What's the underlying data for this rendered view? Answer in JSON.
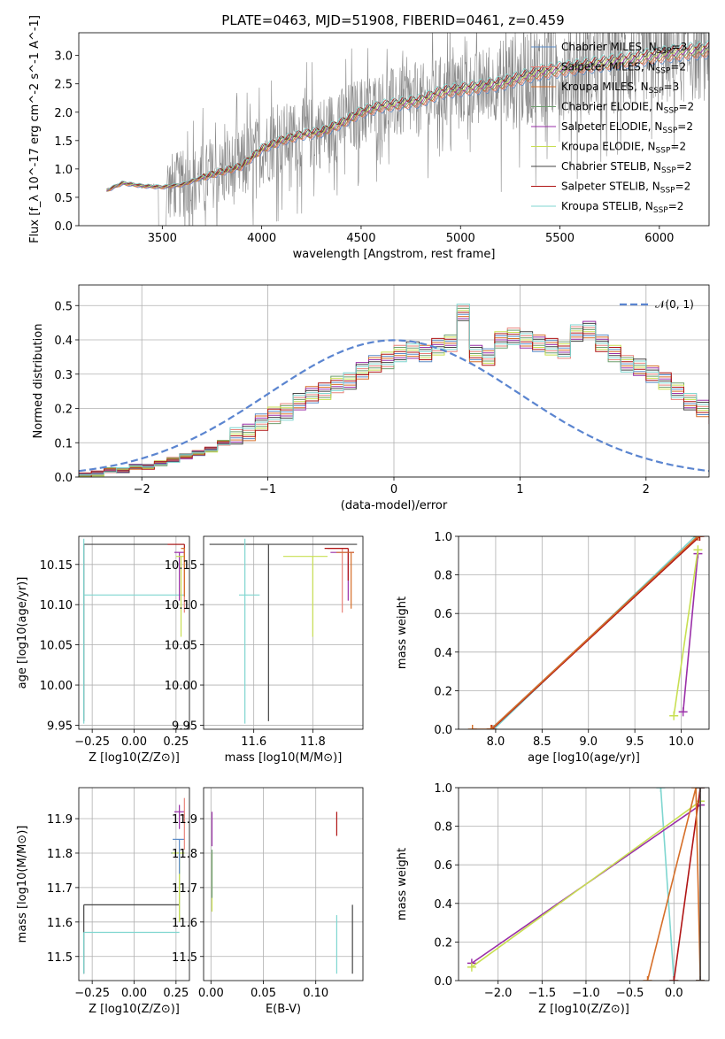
{
  "figure_title": "PLATE=0463, MJD=51908, FIBERID=0461, z=0.459",
  "models": [
    {
      "name": "Chabrier MILES",
      "nssp": "3",
      "color": "#5b8cc8"
    },
    {
      "name": "Salpeter MILES",
      "nssp": "2",
      "color": "#e8837a"
    },
    {
      "name": "Kroupa MILES",
      "nssp": "3",
      "color": "#d66f29"
    },
    {
      "name": "Chabrier ELODIE",
      "nssp": "2",
      "color": "#6e9f6e"
    },
    {
      "name": "Salpeter ELODIE",
      "nssp": "2",
      "color": "#9a2fa8"
    },
    {
      "name": "Kroupa ELODIE",
      "nssp": "2",
      "color": "#c8df52"
    },
    {
      "name": "Chabrier STELIB",
      "nssp": "2",
      "color": "#444444"
    },
    {
      "name": "Salpeter STELIB",
      "nssp": "2",
      "color": "#b01515"
    },
    {
      "name": "Kroupa STELIB",
      "nssp": "2",
      "color": "#7fd6d0"
    }
  ],
  "chart_data": [
    {
      "id": "spectrum",
      "type": "line",
      "title": "PLATE=0463, MJD=51908, FIBERID=0461, z=0.459",
      "xlabel": "wavelength [Angstrom, rest frame]",
      "ylabel": "Flux [f_λ 10^-17 erg cm^-2 s^-1 A^-1]",
      "xlim": [
        3080,
        6250
      ],
      "ylim": [
        0,
        3.4
      ],
      "xticks": [
        3500,
        4000,
        4500,
        5000,
        5500,
        6000
      ],
      "yticks": [
        0.0,
        0.5,
        1.0,
        1.5,
        2.0,
        2.5,
        3.0
      ],
      "data_color": "#888888",
      "model_continuum": [
        [
          3220,
          0.62
        ],
        [
          3300,
          0.75
        ],
        [
          3400,
          0.7
        ],
        [
          3500,
          0.68
        ],
        [
          3600,
          0.72
        ],
        [
          3700,
          0.85
        ],
        [
          3800,
          0.95
        ],
        [
          3900,
          1.05
        ],
        [
          4000,
          1.35
        ],
        [
          4100,
          1.5
        ],
        [
          4200,
          1.6
        ],
        [
          4300,
          1.65
        ],
        [
          4400,
          1.8
        ],
        [
          4500,
          2.0
        ],
        [
          4600,
          2.1
        ],
        [
          4700,
          2.15
        ],
        [
          4800,
          2.2
        ],
        [
          4900,
          2.35
        ],
        [
          5000,
          2.4
        ],
        [
          5100,
          2.45
        ],
        [
          5200,
          2.5
        ],
        [
          5300,
          2.6
        ],
        [
          5400,
          2.7
        ],
        [
          5500,
          2.75
        ],
        [
          5600,
          2.8
        ],
        [
          5700,
          2.85
        ],
        [
          5800,
          2.9
        ],
        [
          5900,
          2.95
        ],
        [
          6000,
          3.0
        ],
        [
          6100,
          3.05
        ],
        [
          6250,
          3.1
        ]
      ],
      "grid": false,
      "legend": "right"
    },
    {
      "id": "residuals",
      "type": "step",
      "xlabel": "(data-model)/error",
      "ylabel": "Normed distribution",
      "xlim": [
        -2.5,
        2.5
      ],
      "ylim": [
        0,
        0.56
      ],
      "xticks": [
        -2,
        -1,
        0,
        1,
        2
      ],
      "yticks": [
        0.0,
        0.1,
        0.2,
        0.3,
        0.4,
        0.5
      ],
      "bin_edges_start": -2.5,
      "bin_width": 0.1,
      "histogram": [
        0.005,
        0.01,
        0.02,
        0.02,
        0.03,
        0.03,
        0.04,
        0.05,
        0.06,
        0.07,
        0.08,
        0.1,
        0.12,
        0.13,
        0.16,
        0.18,
        0.19,
        0.22,
        0.24,
        0.25,
        0.27,
        0.28,
        0.31,
        0.33,
        0.34,
        0.36,
        0.37,
        0.36,
        0.38,
        0.39,
        0.48,
        0.36,
        0.35,
        0.4,
        0.41,
        0.4,
        0.39,
        0.38,
        0.37,
        0.42,
        0.43,
        0.39,
        0.36,
        0.33,
        0.32,
        0.3,
        0.28,
        0.25,
        0.22,
        0.2,
        0.18,
        0.15,
        0.13,
        0.12,
        0.1,
        0.08,
        0.06,
        0.05,
        0.05,
        0.04,
        0.05,
        0.04,
        0.04
      ],
      "normal_label": "𝒩(0, 1)",
      "normal_color": "#5b85d0",
      "grid": true,
      "legend": "top-right"
    },
    {
      "id": "age_vs_Z",
      "type": "errorbar",
      "xlabel": "Z [log10(Z/Z⊙)]",
      "ylabel": "age [log10(age/yr)]",
      "xlim": [
        -0.33,
        0.33
      ],
      "ylim": [
        9.945,
        10.185
      ],
      "xticks": [
        -0.25,
        0.0,
        0.25
      ],
      "yticks": [
        9.95,
        10.0,
        10.05,
        10.1,
        10.15
      ],
      "points": [
        {
          "m": 6,
          "x": -0.3,
          "y": 10.175,
          "xe": [
            0.0,
            0.6
          ],
          "ye": [
            0.22,
            0.0
          ]
        },
        {
          "m": 8,
          "x": -0.3,
          "y": 10.112,
          "xe": [
            0.0,
            0.6
          ],
          "ye": [
            0.16,
            0.07
          ]
        },
        {
          "m": 7,
          "x": 0.3,
          "y": 10.175,
          "xe": [
            0.1,
            0.0
          ],
          "ye": [
            0.02,
            0.0
          ]
        },
        {
          "m": 4,
          "x": 0.27,
          "y": 10.165,
          "xe": [
            0.03,
            0.03
          ],
          "ye": [
            0.06,
            0.0
          ]
        },
        {
          "m": 5,
          "x": 0.28,
          "y": 10.16,
          "xe": [
            0.03,
            0.02
          ],
          "ye": [
            0.1,
            0.0
          ]
        },
        {
          "m": 1,
          "x": 0.3,
          "y": 10.17,
          "xe": [
            0.02,
            0.0
          ],
          "ye": [
            0.08,
            0.0
          ]
        },
        {
          "m": 2,
          "x": 0.3,
          "y": 10.17,
          "xe": [
            0.02,
            0.0
          ],
          "ye": [
            0.06,
            0.0
          ]
        }
      ],
      "grid": true
    },
    {
      "id": "age_vs_mass",
      "type": "errorbar",
      "xlabel": "mass [log10(M/M⊙)]",
      "ylabel": "",
      "xlim": [
        11.43,
        11.97
      ],
      "ylim": [
        9.945,
        10.185
      ],
      "xticks": [
        11.6,
        11.8
      ],
      "yticks": [
        9.95,
        10.0,
        10.05,
        10.1,
        10.15
      ],
      "points": [
        {
          "m": 6,
          "x": 11.65,
          "y": 10.175,
          "xe": [
            0.2,
            0.3
          ],
          "ye": [
            0.22,
            0.0
          ]
        },
        {
          "m": 8,
          "x": 11.57,
          "y": 10.112,
          "xe": [
            0.02,
            0.05
          ],
          "ye": [
            0.16,
            0.07
          ]
        },
        {
          "m": 5,
          "x": 11.8,
          "y": 10.16,
          "xe": [
            0.1,
            0.05
          ],
          "ye": [
            0.1,
            0.0
          ]
        },
        {
          "m": 4,
          "x": 11.92,
          "y": 10.165,
          "xe": [
            0.06,
            0.02
          ],
          "ye": [
            0.06,
            0.0
          ]
        },
        {
          "m": 1,
          "x": 11.9,
          "y": 10.17,
          "xe": [
            0.05,
            0.02
          ],
          "ye": [
            0.08,
            0.0
          ]
        },
        {
          "m": 7,
          "x": 11.92,
          "y": 10.17,
          "xe": [
            0.08,
            0.0
          ],
          "ye": [
            0.04,
            0.0
          ]
        },
        {
          "m": 2,
          "x": 11.93,
          "y": 10.165,
          "xe": [
            0.05,
            0.01
          ],
          "ye": [
            0.07,
            0.0
          ]
        }
      ],
      "grid": true
    },
    {
      "id": "weight_vs_age",
      "type": "line",
      "xlabel": "age [log10(age/yr)]",
      "ylabel": "mass weight",
      "xlim": [
        7.6,
        10.3
      ],
      "ylim": [
        0,
        1
      ],
      "xticks": [
        8.0,
        8.5,
        9.0,
        9.5,
        10.0
      ],
      "yticks": [
        0.0,
        0.2,
        0.4,
        0.6,
        0.8,
        1.0
      ],
      "series": [
        {
          "m": 8,
          "x": [
            7.98,
            10.15
          ],
          "y": [
            0.0,
            1.0
          ]
        },
        {
          "m": 6,
          "x": 7.95,
          "xs": [
            7.95,
            10.18
          ],
          "y": [
            0.0,
            1.0
          ]
        },
        {
          "m": 7,
          "x": [
            7.96,
            10.2
          ],
          "y": [
            0.0,
            1.0
          ]
        },
        {
          "m": 2,
          "x": [
            7.75,
            7.95,
            10.18
          ],
          "y": [
            0.0,
            0.0,
            1.0
          ]
        },
        {
          "m": 4,
          "x": [
            10.02,
            10.18
          ],
          "y": [
            0.09,
            0.91
          ]
        },
        {
          "m": 5,
          "x": [
            9.92,
            10.18
          ],
          "y": [
            0.07,
            0.93
          ]
        }
      ],
      "grid": true
    },
    {
      "id": "mass_vs_Z",
      "type": "errorbar",
      "xlabel": "Z [log10(Z/Z⊙)]",
      "ylabel": "mass [log10(M/M⊙)]",
      "xlim": [
        -0.33,
        0.33
      ],
      "ylim": [
        11.43,
        11.99
      ],
      "xticks": [
        -0.25,
        0.0,
        0.25
      ],
      "yticks": [
        11.5,
        11.6,
        11.7,
        11.8,
        11.9
      ],
      "points": [
        {
          "m": 6,
          "x": -0.3,
          "y": 11.65,
          "xe": [
            0.0,
            0.57
          ],
          "ye": [
            0.2,
            0.0
          ]
        },
        {
          "m": 8,
          "x": -0.3,
          "y": 11.57,
          "xe": [
            0.0,
            0.57
          ],
          "ye": [
            0.12,
            0.0
          ]
        },
        {
          "m": 4,
          "x": 0.27,
          "y": 11.92,
          "xe": [
            0.03,
            0.03
          ],
          "ye": [
            0.05,
            0.02
          ]
        },
        {
          "m": 3,
          "x": 0.27,
          "y": 11.8,
          "xe": [
            0.05,
            0.03
          ],
          "ye": [
            0.2,
            0.0
          ]
        },
        {
          "m": 5,
          "x": 0.27,
          "y": 11.8,
          "xe": [
            0.04,
            0.03
          ],
          "ye": [
            0.2,
            0.0
          ]
        },
        {
          "m": 0,
          "x": 0.27,
          "y": 11.84,
          "xe": [
            0.04,
            0.03
          ],
          "ye": [
            0.1,
            0.0
          ]
        },
        {
          "m": 1,
          "x": 0.3,
          "y": 11.91,
          "xe": [
            0.02,
            0.0
          ],
          "ye": [
            0.1,
            0.05
          ]
        }
      ],
      "grid": true
    },
    {
      "id": "mass_vs_ebv",
      "type": "errorbar",
      "xlabel": "E(B-V)",
      "ylabel": "",
      "xlim": [
        -0.007,
        0.145
      ],
      "ylim": [
        11.43,
        11.99
      ],
      "xticks": [
        0.0,
        0.05,
        0.1
      ],
      "yticks": [
        11.5,
        11.6,
        11.7,
        11.8,
        11.9
      ],
      "points": [
        {
          "m": 4,
          "x": 0.001,
          "y": 11.87,
          "xe": [
            0,
            0
          ],
          "ye": [
            0.05,
            0.05
          ]
        },
        {
          "m": 5,
          "x": 0.001,
          "y": 11.78,
          "xe": [
            0,
            0
          ],
          "ye": [
            0.15,
            0.02
          ]
        },
        {
          "m": 3,
          "x": 0.001,
          "y": 11.79,
          "xe": [
            0,
            0
          ],
          "ye": [
            0.12,
            0.02
          ]
        },
        {
          "m": 7,
          "x": 0.12,
          "y": 11.89,
          "xe": [
            0,
            0
          ],
          "ye": [
            0.04,
            0.03
          ]
        },
        {
          "m": 8,
          "x": 0.12,
          "y": 11.5,
          "xe": [
            0,
            0
          ],
          "ye": [
            0.05,
            0.12
          ]
        },
        {
          "m": 6,
          "x": 0.135,
          "y": 11.55,
          "xe": [
            0,
            0
          ],
          "ye": [
            0.1,
            0.1
          ]
        }
      ],
      "grid": true
    },
    {
      "id": "weight_vs_Z",
      "type": "line",
      "xlabel": "Z [log10(Z/Z⊙)]",
      "ylabel": "mass weight",
      "xlim": [
        -2.45,
        0.4
      ],
      "ylim": [
        0,
        1
      ],
      "xticks": [
        -2.0,
        -1.5,
        -1.0,
        -0.5,
        0.0
      ],
      "yticks": [
        0.0,
        0.2,
        0.4,
        0.6,
        0.8,
        1.0
      ],
      "series": [
        {
          "m": 8,
          "x": [
            -0.15,
            0.0
          ],
          "y": [
            1.0,
            0.0
          ]
        },
        {
          "m": 4,
          "x": [
            -2.3,
            0.3
          ],
          "y": [
            0.09,
            0.91
          ]
        },
        {
          "m": 5,
          "x": [
            -2.3,
            0.3
          ],
          "y": [
            0.07,
            0.93
          ]
        },
        {
          "m": 7,
          "x": [
            0.0,
            0.3
          ],
          "y": [
            0.0,
            1.0
          ]
        },
        {
          "m": 2,
          "x": [
            -0.3,
            0.25,
            0.3
          ],
          "y": [
            0.0,
            1.0,
            0.0
          ]
        },
        {
          "m": 6,
          "x": [
            0.3,
            0.3
          ],
          "y": [
            0.0,
            1.0
          ]
        }
      ],
      "grid": true
    }
  ]
}
